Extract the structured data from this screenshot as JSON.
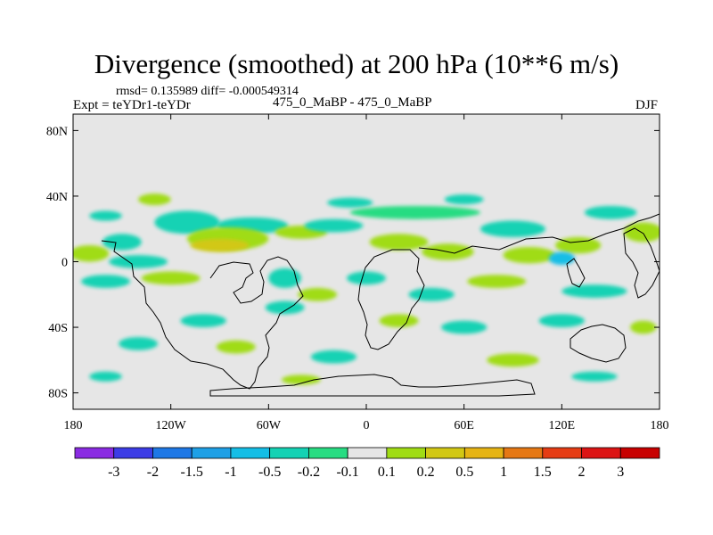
{
  "title": "Divergence (smoothed) at 200 hPa (10**6 m/s)",
  "stats_line": "rmsd= 0.135989 diff= -0.000549314",
  "experiment": "Expt = teYDr1-teYDr",
  "cases": "475_0_MaBP - 475_0_MaBP",
  "season": "DJF",
  "chart_data": {
    "type": "heatmap",
    "title": "Divergence (smoothed) at 200 hPa (10**6 m/s)",
    "x": {
      "range": [
        -180,
        180
      ],
      "ticks": [
        -180,
        -120,
        -60,
        0,
        60,
        120,
        180
      ],
      "tick_labels": [
        "180",
        "120W",
        "60W",
        "0",
        "60E",
        "120E",
        "180"
      ]
    },
    "y": {
      "range": [
        -90,
        90
      ],
      "ticks": [
        80,
        40,
        0,
        -40,
        -80
      ],
      "tick_labels": [
        "80N",
        "40N",
        "0",
        "40S",
        "80S"
      ]
    },
    "colorbar": {
      "levels": [
        -3,
        -2,
        -1.5,
        -1,
        -0.5,
        -0.2,
        -0.1,
        0.1,
        0.2,
        0.5,
        1,
        1.5,
        2,
        3
      ],
      "level_labels": [
        "-3",
        "-2",
        "-1.5",
        "-1",
        "-0.5",
        "-0.2",
        "-0.1",
        "0.1",
        "0.2",
        "0.5",
        "1",
        "1.5",
        "2",
        "3"
      ],
      "colors": [
        "#8a2be2",
        "#3c3ce6",
        "#1e78e6",
        "#1ea0e6",
        "#14bee6",
        "#14d2b4",
        "#28dc82",
        "#e6e6e6",
        "#a0dc14",
        "#d2c814",
        "#e6b414",
        "#e67814",
        "#e63c14",
        "#dc1414",
        "#c80000"
      ]
    },
    "features": [
      {
        "lon": -130,
        "lat": 38,
        "rx": 10,
        "ry": 3.5,
        "class": 8
      },
      {
        "lon": -160,
        "lat": 28,
        "rx": 10,
        "ry": 3,
        "class": 5
      },
      {
        "lon": -110,
        "lat": 24,
        "rx": 20,
        "ry": 7,
        "class": 5
      },
      {
        "lon": -70,
        "lat": 22,
        "rx": 22,
        "ry": 5,
        "class": 5
      },
      {
        "lon": -85,
        "lat": 14,
        "rx": 25,
        "ry": 7,
        "class": 8
      },
      {
        "lon": -90,
        "lat": 10,
        "rx": 18,
        "ry": 4,
        "class": 9
      },
      {
        "lon": -150,
        "lat": 12,
        "rx": 12,
        "ry": 5,
        "class": 5
      },
      {
        "lon": -170,
        "lat": 5,
        "rx": 12,
        "ry": 5,
        "class": 8
      },
      {
        "lon": -140,
        "lat": 0,
        "rx": 18,
        "ry": 4,
        "class": 5
      },
      {
        "lon": -160,
        "lat": -12,
        "rx": 15,
        "ry": 4,
        "class": 5
      },
      {
        "lon": -120,
        "lat": -10,
        "rx": 18,
        "ry": 4,
        "class": 8
      },
      {
        "lon": -40,
        "lat": 18,
        "rx": 16,
        "ry": 4,
        "class": 8
      },
      {
        "lon": -20,
        "lat": 22,
        "rx": 18,
        "ry": 4,
        "class": 5
      },
      {
        "lon": -10,
        "lat": 36,
        "rx": 14,
        "ry": 3,
        "class": 5
      },
      {
        "lon": 30,
        "lat": 30,
        "rx": 40,
        "ry": 4,
        "class": 6
      },
      {
        "lon": 60,
        "lat": 38,
        "rx": 12,
        "ry": 3,
        "class": 5
      },
      {
        "lon": 20,
        "lat": 12,
        "rx": 18,
        "ry": 5,
        "class": 8
      },
      {
        "lon": 50,
        "lat": 6,
        "rx": 16,
        "ry": 5,
        "class": 8
      },
      {
        "lon": 90,
        "lat": 20,
        "rx": 20,
        "ry": 5,
        "class": 5
      },
      {
        "lon": 100,
        "lat": 4,
        "rx": 16,
        "ry": 5,
        "class": 8
      },
      {
        "lon": 130,
        "lat": 10,
        "rx": 14,
        "ry": 5,
        "class": 8
      },
      {
        "lon": 150,
        "lat": 30,
        "rx": 16,
        "ry": 4,
        "class": 5
      },
      {
        "lon": 170,
        "lat": 18,
        "rx": 12,
        "ry": 6,
        "class": 8
      },
      {
        "lon": 120,
        "lat": 2,
        "rx": 8,
        "ry": 4,
        "class": 4
      },
      {
        "lon": -50,
        "lat": -10,
        "rx": 10,
        "ry": 6,
        "class": 5
      },
      {
        "lon": -30,
        "lat": -20,
        "rx": 12,
        "ry": 4,
        "class": 8
      },
      {
        "lon": 0,
        "lat": -10,
        "rx": 12,
        "ry": 4,
        "class": 5
      },
      {
        "lon": 40,
        "lat": -20,
        "rx": 14,
        "ry": 4,
        "class": 5
      },
      {
        "lon": 80,
        "lat": -12,
        "rx": 18,
        "ry": 4,
        "class": 8
      },
      {
        "lon": 140,
        "lat": -18,
        "rx": 20,
        "ry": 4,
        "class": 5
      },
      {
        "lon": -100,
        "lat": -36,
        "rx": 14,
        "ry": 4,
        "class": 5
      },
      {
        "lon": -50,
        "lat": -28,
        "rx": 12,
        "ry": 4,
        "class": 5
      },
      {
        "lon": 20,
        "lat": -36,
        "rx": 12,
        "ry": 4,
        "class": 8
      },
      {
        "lon": 60,
        "lat": -40,
        "rx": 14,
        "ry": 4,
        "class": 5
      },
      {
        "lon": 120,
        "lat": -36,
        "rx": 14,
        "ry": 4,
        "class": 5
      },
      {
        "lon": 170,
        "lat": -40,
        "rx": 8,
        "ry": 4,
        "class": 8
      },
      {
        "lon": -140,
        "lat": -50,
        "rx": 12,
        "ry": 4,
        "class": 5
      },
      {
        "lon": -80,
        "lat": -52,
        "rx": 12,
        "ry": 4,
        "class": 8
      },
      {
        "lon": -20,
        "lat": -58,
        "rx": 14,
        "ry": 4,
        "class": 5
      },
      {
        "lon": 90,
        "lat": -60,
        "rx": 16,
        "ry": 4,
        "class": 8
      },
      {
        "lon": -160,
        "lat": -70,
        "rx": 10,
        "ry": 3,
        "class": 5
      },
      {
        "lon": -40,
        "lat": -72,
        "rx": 12,
        "ry": 3,
        "class": 8
      },
      {
        "lon": 140,
        "lat": -70,
        "rx": 14,
        "ry": 3,
        "class": 5
      }
    ]
  }
}
